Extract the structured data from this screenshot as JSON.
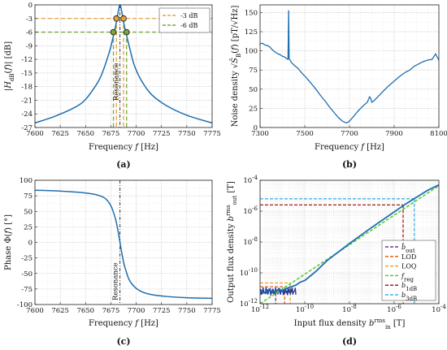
{
  "chart_data": [
    {
      "panel_label": "(a)",
      "type": "line",
      "xlabel": "Frequency f [Hz]",
      "ylabel": "|H_dB(f)| [dB]",
      "xlim": [
        7600,
        7775
      ],
      "ylim": [
        -27,
        0
      ],
      "xticks": [
        7600,
        7625,
        7650,
        7675,
        7700,
        7725,
        7750,
        7775
      ],
      "yticks": [
        0,
        -3,
        -6,
        -9,
        -12,
        -15,
        -18,
        -21,
        -24,
        -27
      ],
      "grid": true,
      "legend_position": "top-right",
      "annotation": "Resonance",
      "resonance_hz": 7684,
      "thresholds": [
        {
          "name": "-3 dB",
          "value": -3,
          "color": "#e8a23a",
          "x_left": 7680.5,
          "x_right": 7687.5
        },
        {
          "name": "-6 dB",
          "value": -6,
          "color": "#7aa73a",
          "x_left": 7677.5,
          "x_right": 7690.5
        }
      ],
      "series": [
        {
          "color": "#1f6fb0",
          "x": [
            7600,
            7620,
            7640,
            7650,
            7660,
            7665,
            7670,
            7675,
            7678,
            7680,
            7682,
            7684,
            7686,
            7688,
            7690,
            7693,
            7698,
            7705,
            7715,
            7730,
            7750,
            7775
          ],
          "y": [
            -26,
            -24.5,
            -22.5,
            -20.8,
            -17.8,
            -15.8,
            -12.8,
            -9.2,
            -6.3,
            -4.3,
            -1.8,
            0,
            -1.8,
            -4.3,
            -6.3,
            -9.0,
            -13.2,
            -16.6,
            -19.7,
            -22.2,
            -24.3,
            -26
          ]
        }
      ]
    },
    {
      "panel_label": "(b)",
      "type": "line",
      "xlabel": "Frequency f [Hz]",
      "ylabel": "Noise density √Ŝ_B(f) [pT/√Hz]",
      "xlim": [
        7300,
        8100
      ],
      "ylim": [
        0,
        160
      ],
      "xticks": [
        7300,
        7500,
        7700,
        7900,
        8100
      ],
      "yticks": [
        0,
        25,
        50,
        75,
        100,
        125,
        150
      ],
      "grid": true,
      "series": [
        {
          "color": "#1f6fb0",
          "x": [
            7300,
            7310,
            7320,
            7330,
            7340,
            7350,
            7360,
            7370,
            7380,
            7390,
            7400,
            7410,
            7418,
            7425,
            7428,
            7430,
            7440,
            7450,
            7470,
            7490,
            7510,
            7530,
            7550,
            7570,
            7590,
            7610,
            7630,
            7650,
            7670,
            7685,
            7695,
            7705,
            7720,
            7740,
            7760,
            7780,
            7790,
            7795,
            7800,
            7810,
            7830,
            7850,
            7870,
            7890,
            7910,
            7930,
            7950,
            7970,
            7990,
            8010,
            8030,
            8050,
            8070,
            8085,
            8100
          ],
          "y": [
            109,
            110,
            108,
            107,
            106,
            103,
            100,
            98,
            96,
            95,
            93,
            92,
            90,
            89,
            153,
            90,
            85,
            82,
            77,
            70,
            64,
            57,
            50,
            42,
            35,
            27,
            20,
            13,
            8,
            6,
            7,
            10,
            15,
            22,
            28,
            33,
            40,
            38,
            33,
            35,
            41,
            47,
            53,
            58,
            63,
            68,
            72,
            75,
            80,
            83,
            86,
            88,
            89,
            96,
            88
          ]
        }
      ]
    },
    {
      "panel_label": "(c)",
      "type": "line",
      "xlabel": "Frequency f [Hz]",
      "ylabel": "Phase Φ(f) [°]",
      "xlim": [
        7600,
        7775
      ],
      "ylim": [
        -100,
        100
      ],
      "xticks": [
        7600,
        7625,
        7650,
        7675,
        7700,
        7725,
        7750,
        7775
      ],
      "yticks": [
        100,
        75,
        50,
        25,
        0,
        -25,
        -50,
        -75,
        -100
      ],
      "grid": true,
      "annotation": "Resonance",
      "resonance_hz": 7684,
      "series": [
        {
          "color": "#1f6fb0",
          "x": [
            7600,
            7620,
            7640,
            7650,
            7660,
            7665,
            7670,
            7675,
            7678,
            7680,
            7682,
            7684,
            7686,
            7688,
            7690,
            7693,
            7698,
            7705,
            7715,
            7730,
            7750,
            7775
          ],
          "y": [
            84,
            83,
            81,
            79.5,
            77,
            74.5,
            70,
            59,
            46,
            35,
            19,
            0,
            -19,
            -35,
            -46,
            -60,
            -71,
            -79,
            -84,
            -87,
            -89,
            -90
          ]
        }
      ]
    },
    {
      "panel_label": "(d)",
      "type": "line",
      "xlabel": "Input flux density b_in^rms [T]",
      "ylabel": "Output flux density b_out^rms [T]",
      "xscale": "log",
      "yscale": "log",
      "xlim_exp": [
        -12,
        -4
      ],
      "ylim_exp": [
        -12,
        -4
      ],
      "xtick_labels": [
        "10^-12",
        "10^-10",
        "10^-8",
        "10^-6",
        "10^-4"
      ],
      "ytick_labels": [
        "10^-12",
        "10^-10",
        "10^-8",
        "10^-6",
        "10^-4"
      ],
      "grid": true,
      "legend_position": "bottom-right",
      "markers": [
        {
          "name": "b̂_out",
          "color": "#7b2a8f",
          "x_exp": -11.3,
          "y_exp": -11.3
        },
        {
          "name": "LOD",
          "color": "#e06020",
          "x_exp": -10.9,
          "y_exp": -10.9
        },
        {
          "name": "LOQ",
          "color": "#e8a23a",
          "x_exp": -10.65,
          "y_exp": -10.65
        },
        {
          "name": "f_reg",
          "color": "#5ecb3a",
          "x_exp": null,
          "y_exp": null
        },
        {
          "name": "b_1dB",
          "color": "#a01a1a",
          "x_exp": -5.6,
          "y_exp": -5.6
        },
        {
          "name": "b_3dB",
          "color": "#3fb6e6",
          "x_exp": -5.1,
          "y_exp": -5.2
        }
      ],
      "series": [
        {
          "color": "#1f6fb0",
          "x_exp": [
            -12,
            -11.8,
            -11.6,
            -11.4,
            -11.2,
            -11.0,
            -10.8,
            -10.6,
            -10.4,
            -10.2,
            -10.0,
            -9.5,
            -9.0,
            -8.0,
            -7.0,
            -6.0,
            -5.5,
            -5.0,
            -4.5,
            -4.0
          ],
          "y_exp": [
            -11.2,
            -11.3,
            -11.1,
            -11.25,
            -11.1,
            -11.15,
            -11.0,
            -10.9,
            -10.8,
            -10.6,
            -10.5,
            -9.9,
            -9.2,
            -8.1,
            -7.05,
            -6.05,
            -5.55,
            -5.1,
            -4.65,
            -4.3
          ]
        }
      ]
    }
  ]
}
